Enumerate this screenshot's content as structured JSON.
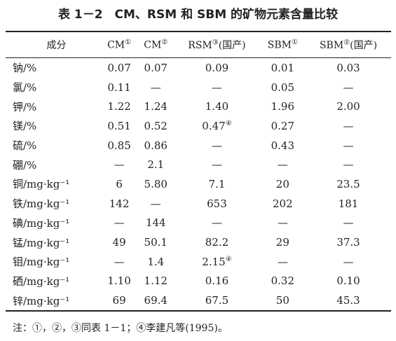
{
  "title": "表 1－2　CM、RSM 和 SBM 的矿物元素含量比较",
  "table": {
    "corner": "成分",
    "columns": [
      {
        "name": "CM",
        "note": "①"
      },
      {
        "name": "CM",
        "note": "②"
      },
      {
        "name": "RSM",
        "note": "③",
        "suffix": "(国产)"
      },
      {
        "name": "SBM",
        "note": "①"
      },
      {
        "name": "SBM",
        "note": "②",
        "suffix": "(国产)"
      }
    ],
    "rows": [
      {
        "label": "钠/%",
        "cells": [
          "0.07",
          "0.07",
          "0.09",
          "0.01",
          "0.03"
        ]
      },
      {
        "label": "氯/%",
        "cells": [
          "0.11",
          "—",
          "—",
          "0.05",
          "—"
        ]
      },
      {
        "label": "钾/%",
        "cells": [
          "1.22",
          "1.24",
          "1.40",
          "1.96",
          "2.00"
        ]
      },
      {
        "label": "镁/%",
        "cells": [
          "0.51",
          "0.52",
          {
            "value": "0.47",
            "note": "④"
          },
          "0.27",
          "—"
        ]
      },
      {
        "label": "硫/%",
        "cells": [
          "0.85",
          "0.86",
          "—",
          "0.43",
          "—"
        ]
      },
      {
        "label": "硼/%",
        "cells": [
          "—",
          "2.1",
          "—",
          "—",
          "—"
        ]
      },
      {
        "label": "铜/mg·kg⁻¹",
        "cells": [
          "6",
          "5.80",
          "7.1",
          "20",
          "23.5"
        ]
      },
      {
        "label": "铁/mg·kg⁻¹",
        "cells": [
          "142",
          "—",
          "653",
          "202",
          "181"
        ]
      },
      {
        "label": "碘/mg·kg⁻¹",
        "cells": [
          "—",
          "144",
          "—",
          "—",
          "—"
        ]
      },
      {
        "label": "锰/mg·kg⁻¹",
        "cells": [
          "49",
          "50.1",
          "82.2",
          "29",
          "37.3"
        ]
      },
      {
        "label": "钼/mg·kg⁻¹",
        "cells": [
          "—",
          "1.4",
          {
            "value": "2.15",
            "note": "④"
          },
          "—",
          "—"
        ]
      },
      {
        "label": "硒/mg·kg⁻¹",
        "cells": [
          "1.10",
          "1.12",
          "0.16",
          "0.32",
          "0.10"
        ]
      },
      {
        "label": "锌/mg·kg⁻¹",
        "cells": [
          "69",
          "69.4",
          "67.5",
          "50",
          "45.3"
        ]
      }
    ]
  },
  "footnote": "注：①，②，③同表 1－1；④李建凡等(1995)。"
}
